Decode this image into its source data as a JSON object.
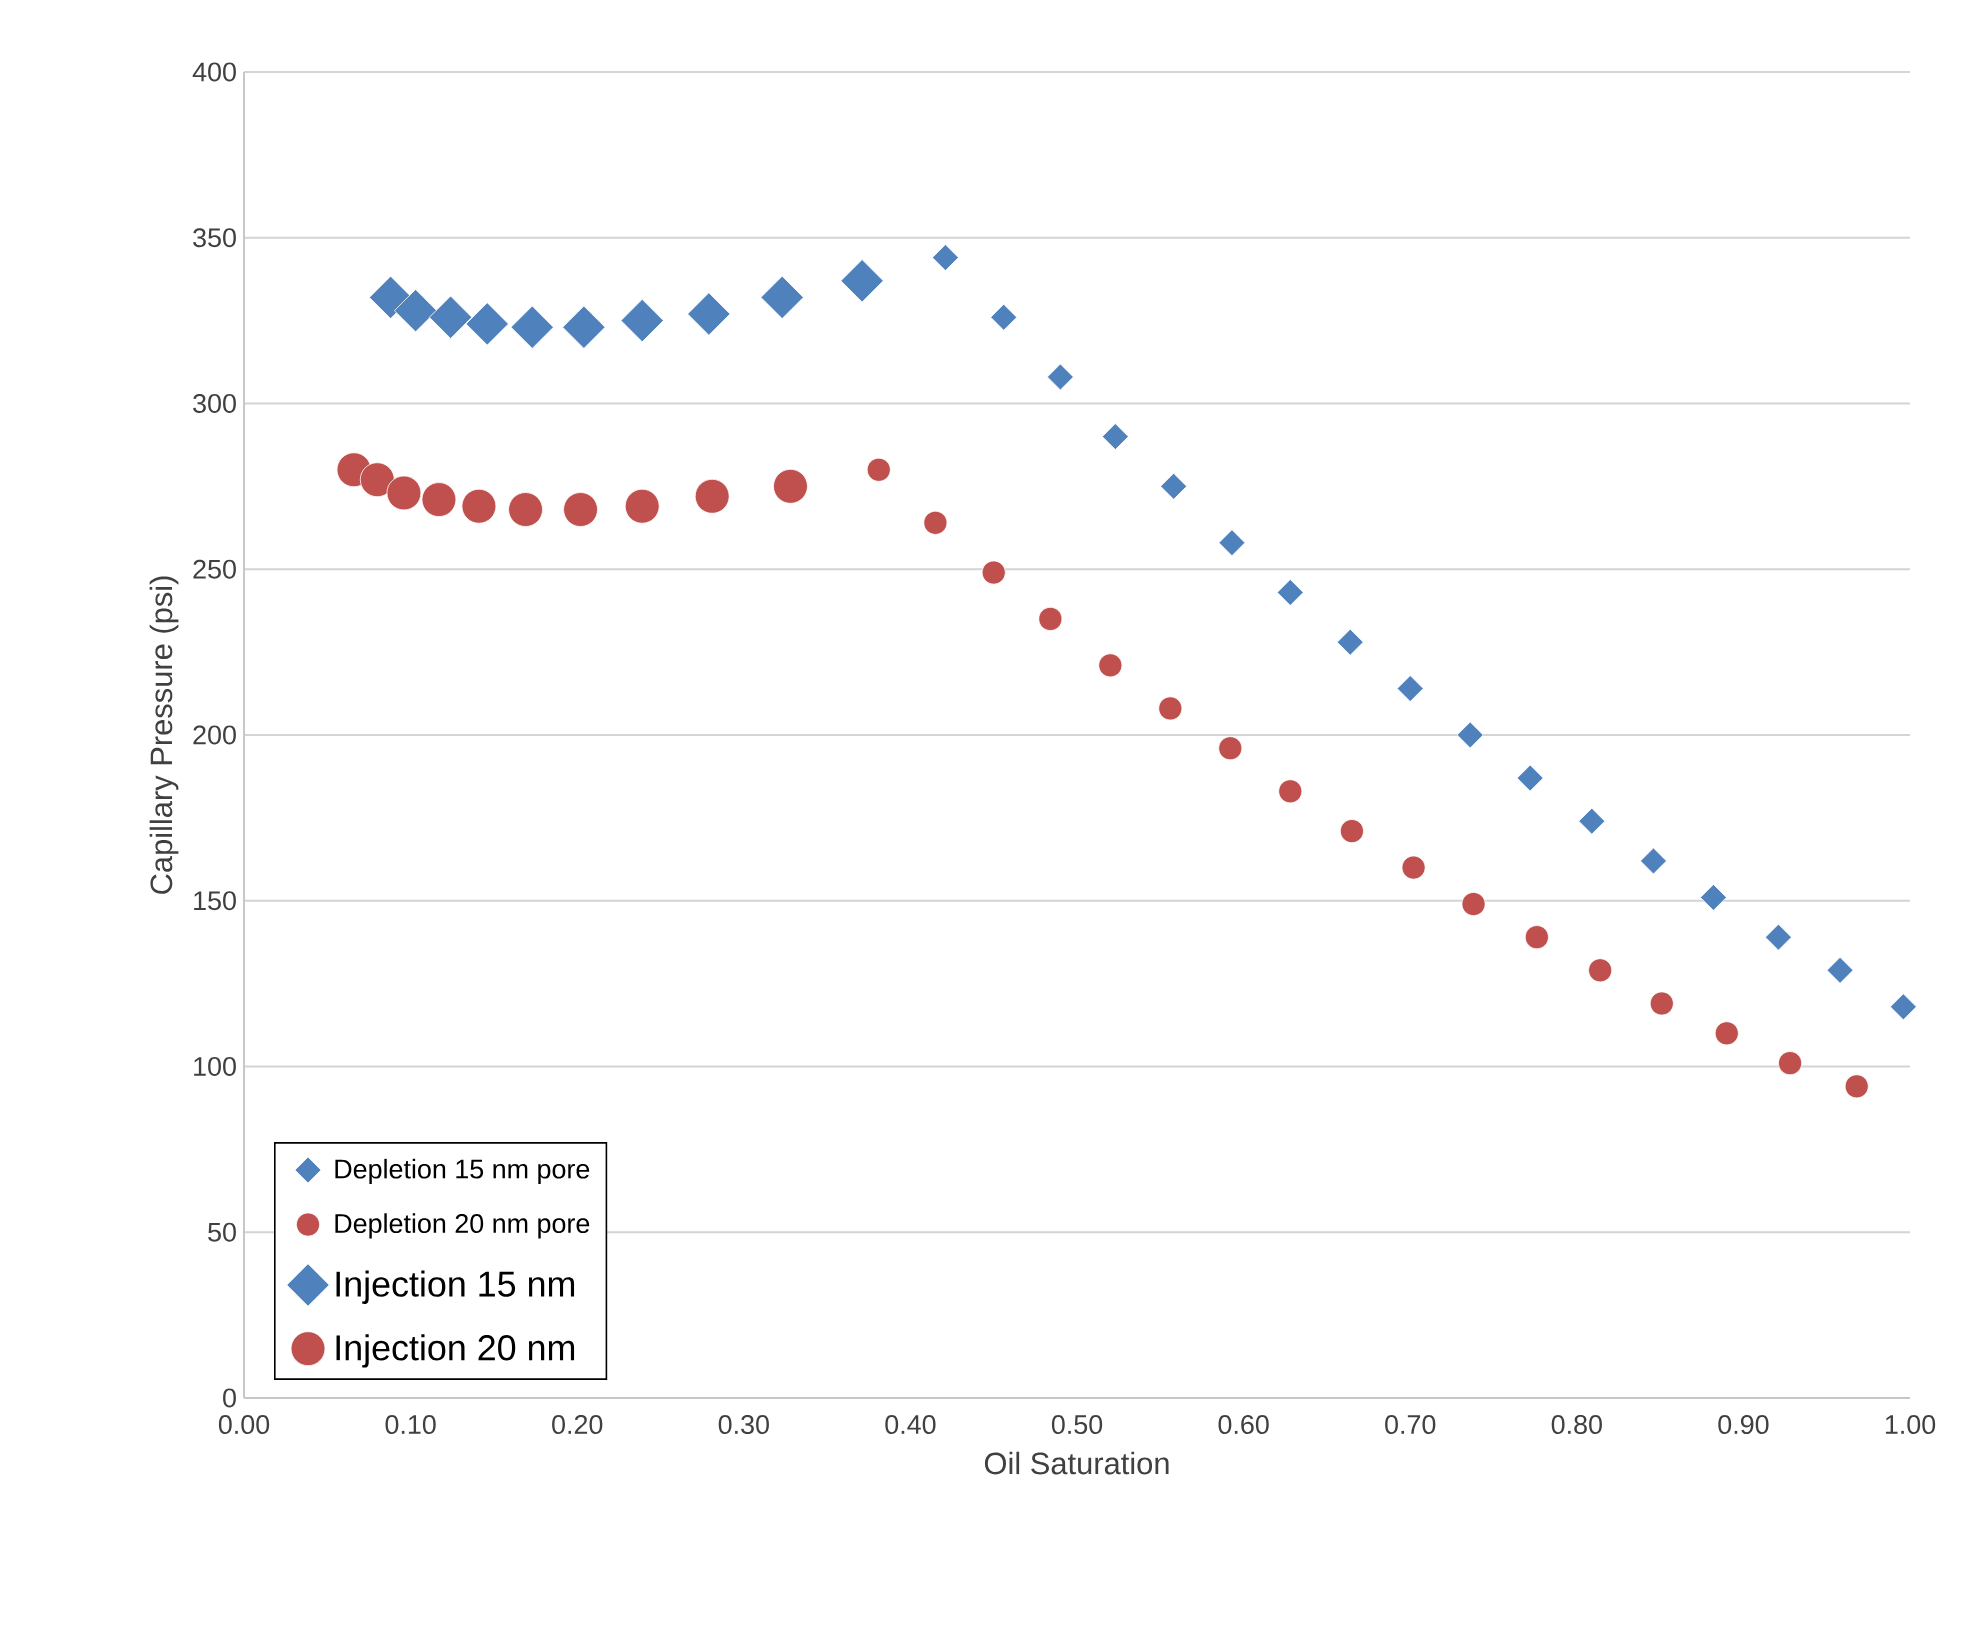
{
  "chart_data": {
    "type": "scatter",
    "xlabel": "Oil Saturation",
    "ylabel": "Capillary Pressure (psi)",
    "xlim": [
      0,
      1
    ],
    "ylim": [
      0,
      400
    ],
    "xticks": [
      {
        "value": 0,
        "label": "0.00"
      },
      {
        "value": 0.1,
        "label": "0.10"
      },
      {
        "value": 0.2,
        "label": "0.20"
      },
      {
        "value": 0.3,
        "label": "0.30"
      },
      {
        "value": 0.4,
        "label": "0.40"
      },
      {
        "value": 0.5,
        "label": "0.50"
      },
      {
        "value": 0.6,
        "label": "0.60"
      },
      {
        "value": 0.7,
        "label": "0.70"
      },
      {
        "value": 0.8,
        "label": "0.80"
      },
      {
        "value": 0.9,
        "label": "0.90"
      },
      {
        "value": 1,
        "label": "1.00"
      }
    ],
    "yticks": [
      0,
      50,
      100,
      150,
      200,
      250,
      300,
      350,
      400
    ],
    "grid": "y",
    "legend": "bottom left",
    "series": [
      {
        "name": "Depletion 15 nm pore",
        "color": "#4f81bd",
        "marker": "diamond",
        "x": [
          0.421,
          0.456,
          0.49,
          0.523,
          0.558,
          0.593,
          0.628,
          0.664,
          0.7,
          0.736,
          0.772,
          0.809,
          0.846,
          0.882,
          0.921,
          0.958,
          0.996
        ],
        "values": [
          344,
          326,
          308,
          290,
          275,
          258,
          243,
          228,
          214,
          200,
          187,
          174,
          162,
          151,
          139,
          129,
          118
        ]
      },
      {
        "name": "Depletion 20 nm pore",
        "color": "#c0504d",
        "marker": "circle",
        "x": [
          0.381,
          0.415,
          0.45,
          0.484,
          0.52,
          0.556,
          0.592,
          0.628,
          0.665,
          0.702,
          0.738,
          0.776,
          0.814,
          0.851,
          0.89,
          0.928,
          0.968
        ],
        "values": [
          280,
          264,
          249,
          235,
          221,
          208,
          196,
          183,
          171,
          160,
          149,
          139,
          129,
          119,
          110,
          101,
          94
        ]
      },
      {
        "name": "Injection 15 nm",
        "color": "#4f81bd",
        "marker": "diamond",
        "x": [
          0.088,
          0.103,
          0.124,
          0.146,
          0.173,
          0.204,
          0.239,
          0.279,
          0.323,
          0.371
        ],
        "values": [
          332,
          328,
          326,
          324,
          323,
          323,
          325,
          327,
          332,
          337
        ]
      },
      {
        "name": "Injection 20 nm",
        "color": "#c0504d",
        "marker": "circle",
        "x": [
          0.066,
          0.08,
          0.096,
          0.117,
          0.141,
          0.169,
          0.202,
          0.239,
          0.281,
          0.328
        ],
        "values": [
          280,
          277,
          273,
          271,
          269,
          268,
          268,
          269,
          272,
          275
        ]
      }
    ]
  }
}
